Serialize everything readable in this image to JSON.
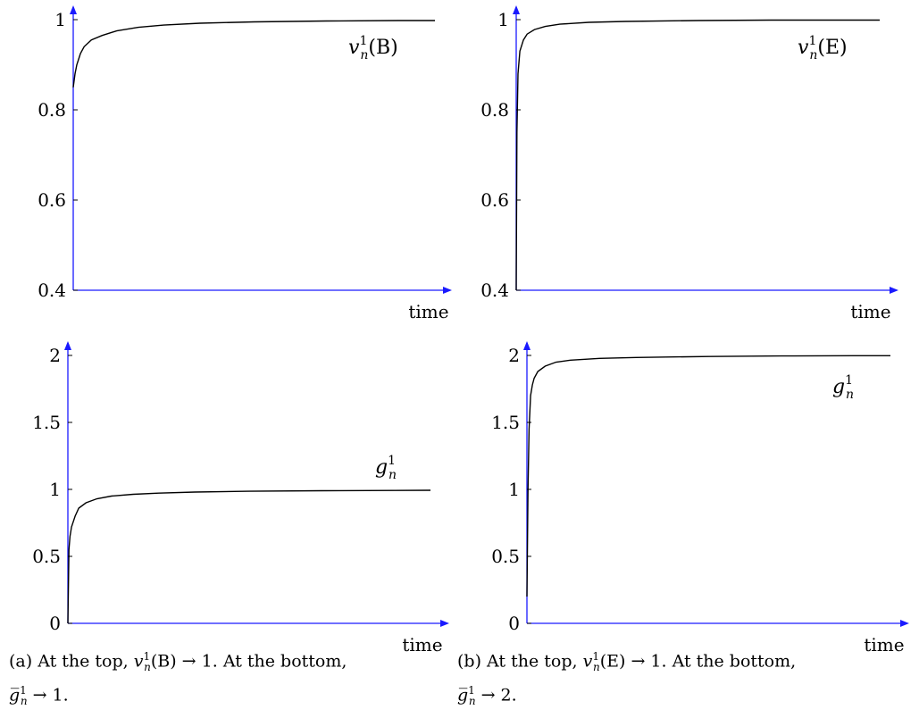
{
  "chart_data": [
    {
      "type": "line",
      "panel": "a-top",
      "xlabel": "time",
      "ylim": [
        0.4,
        1.0
      ],
      "yticks": [
        "0.4",
        "0.6",
        "0.8",
        "1"
      ],
      "curve_label": "v_n^1(B)",
      "series": [
        {
          "x": [
            0,
            0.005,
            0.01,
            0.02,
            0.03,
            0.05,
            0.08,
            0.12,
            0.18,
            0.25,
            0.35,
            0.5,
            0.7,
            0.9,
            1.0
          ],
          "y": [
            0.85,
            0.88,
            0.9,
            0.925,
            0.94,
            0.955,
            0.965,
            0.975,
            0.983,
            0.988,
            0.992,
            0.995,
            0.997,
            0.998,
            0.998
          ]
        }
      ]
    },
    {
      "type": "line",
      "panel": "b-top",
      "xlabel": "time",
      "ylim": [
        0.4,
        1.0
      ],
      "yticks": [
        "0.4",
        "0.6",
        "0.8",
        "1"
      ],
      "curve_label": "v_n^1(E)",
      "series": [
        {
          "x": [
            0,
            0.002,
            0.005,
            0.01,
            0.02,
            0.03,
            0.05,
            0.08,
            0.12,
            0.2,
            0.3,
            0.5,
            0.7,
            0.9,
            1.0
          ],
          "y": [
            0.4,
            0.75,
            0.88,
            0.93,
            0.955,
            0.968,
            0.978,
            0.985,
            0.99,
            0.994,
            0.996,
            0.998,
            0.999,
            0.999,
            0.999
          ]
        }
      ]
    },
    {
      "type": "line",
      "panel": "a-bottom",
      "xlabel": "time",
      "ylim": [
        0,
        2
      ],
      "yticks": [
        "0",
        "0.5",
        "1",
        "1.5",
        "2"
      ],
      "curve_label": "g_n^1",
      "series": [
        {
          "x": [
            0,
            0.003,
            0.006,
            0.01,
            0.02,
            0.03,
            0.05,
            0.08,
            0.12,
            0.18,
            0.25,
            0.35,
            0.5,
            0.7,
            0.9,
            1.0
          ],
          "y": [
            0.0,
            0.55,
            0.65,
            0.72,
            0.8,
            0.86,
            0.9,
            0.93,
            0.95,
            0.963,
            0.972,
            0.98,
            0.986,
            0.99,
            0.992,
            0.993
          ]
        }
      ]
    },
    {
      "type": "line",
      "panel": "b-bottom",
      "xlabel": "time",
      "ylim": [
        0,
        2
      ],
      "yticks": [
        "0",
        "0.5",
        "1",
        "1.5",
        "2"
      ],
      "curve_label": "g_n^1",
      "series": [
        {
          "x": [
            0,
            0.003,
            0.006,
            0.01,
            0.015,
            0.02,
            0.03,
            0.05,
            0.08,
            0.12,
            0.2,
            0.3,
            0.5,
            0.7,
            0.9,
            1.0
          ],
          "y": [
            0.2,
            1.0,
            1.45,
            1.7,
            1.78,
            1.83,
            1.88,
            1.92,
            1.95,
            1.965,
            1.978,
            1.985,
            1.992,
            1.996,
            1.998,
            1.998
          ]
        }
      ]
    }
  ],
  "captions": {
    "a": {
      "label": "(a)",
      "text1": "At the top,",
      "expr1": "v",
      "sup1": "1",
      "sub1": "n",
      "arg1": "(B) → 1.",
      "text2": "At the bottom,",
      "expr2": "g̅",
      "sup2": "1",
      "sub2": "n",
      "tail2": "→ 1."
    },
    "b": {
      "label": "(b)",
      "text1": "At the top,",
      "expr1": "v",
      "sup1": "1",
      "sub1": "n",
      "arg1": "(E) → 1.",
      "text2": "At the bottom,",
      "expr2": "g̅",
      "sup2": "1",
      "sub2": "n",
      "tail2": "→ 2."
    }
  },
  "colors": {
    "axis": "#1a1aff",
    "curve": "#000000"
  }
}
